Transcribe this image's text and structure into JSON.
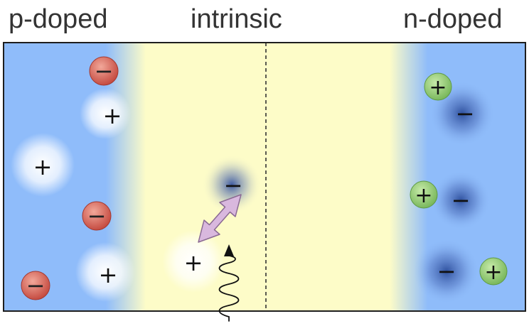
{
  "labels": {
    "p_region": "p-doped",
    "intrinsic_region": "intrinsic",
    "n_region": "n-doped"
  },
  "symbols": {
    "plus": "+",
    "minus": "−"
  },
  "colors": {
    "doped_blue": "#8fbcfa",
    "intrinsic_yellow": "#fdfcc8",
    "acceptor_red": "#d05a4e",
    "donor_green": "#8cc970",
    "exciton_arrow": "#d9b8de",
    "border": "#1e1e1e"
  },
  "icons": {
    "photon": "wavy-photon-arrow-icon",
    "exciton": "double-headed-arrow-icon"
  }
}
